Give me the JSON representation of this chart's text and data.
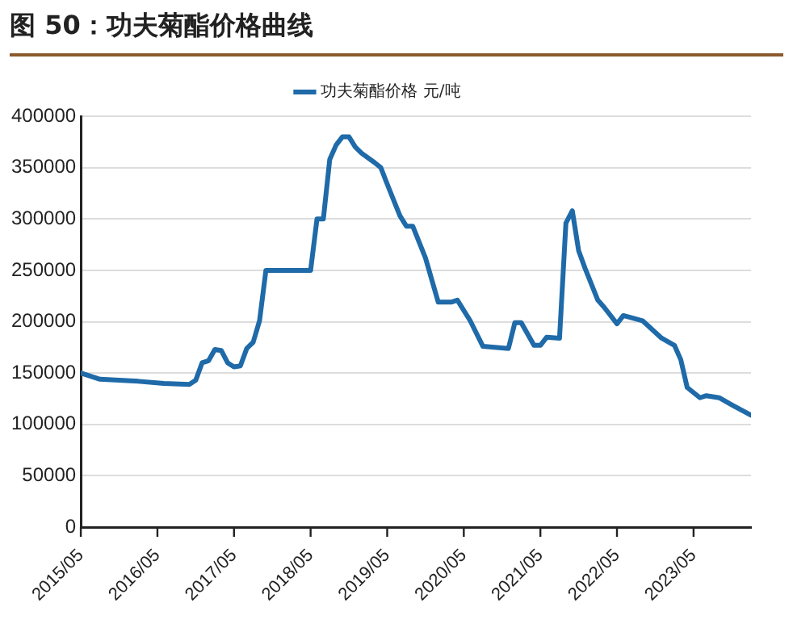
{
  "chart_data": {
    "type": "line",
    "title": "图 50：功夫菊酯价格曲线",
    "x": [
      "2015-05",
      "2015-08",
      "2016-02",
      "2016-06",
      "2016-10",
      "2016-11",
      "2016-12",
      "2017-01",
      "2017-02",
      "2017-03",
      "2017-04",
      "2017-05",
      "2017-06",
      "2017-07",
      "2017-08",
      "2017-09",
      "2017-10",
      "2018-05",
      "2018-06",
      "2018-07",
      "2018-08",
      "2018-09",
      "2018-10",
      "2018-11",
      "2018-12",
      "2019-01",
      "2019-03",
      "2019-04",
      "2019-05",
      "2019-07",
      "2019-08",
      "2019-09",
      "2019-11",
      "2020-01",
      "2020-03",
      "2020-04",
      "2020-06",
      "2020-08",
      "2020-12",
      "2021-01",
      "2021-02",
      "2021-04",
      "2021-05",
      "2021-06",
      "2021-08",
      "2021-09",
      "2021-10",
      "2021-11",
      "2021-12",
      "2022-02",
      "2022-03",
      "2022-05",
      "2022-06",
      "2022-09",
      "2022-12",
      "2023-02",
      "2023-03",
      "2023-04",
      "2023-06",
      "2023-07",
      "2023-09",
      "2023-11",
      "2024-02"
    ],
    "series": [
      {
        "name": "功夫菊酯价格 元/吨",
        "color": "#1f6aa8",
        "values": [
          150000,
          144000,
          142000,
          140000,
          139000,
          143000,
          160000,
          162000,
          173000,
          172000,
          160000,
          156000,
          157000,
          174000,
          180000,
          201000,
          250000,
          250000,
          300000,
          300000,
          358000,
          372000,
          380000,
          380000,
          370000,
          364000,
          355000,
          350000,
          334000,
          303000,
          293000,
          293000,
          262000,
          219000,
          219000,
          221000,
          201000,
          176000,
          174000,
          199000,
          199000,
          177000,
          177000,
          185000,
          184000,
          296000,
          308000,
          269000,
          252000,
          221000,
          214000,
          198000,
          206000,
          201000,
          184000,
          177000,
          163000,
          136000,
          126000,
          128000,
          126000,
          119000,
          109000
        ]
      }
    ],
    "xlim": [
      "2015-05",
      "2024-02"
    ],
    "xticks": [
      {
        "value": "2015-05",
        "label": "2015/05"
      },
      {
        "value": "2016-05",
        "label": "2016/05"
      },
      {
        "value": "2017-05",
        "label": "2017/05"
      },
      {
        "value": "2018-05",
        "label": "2018/05"
      },
      {
        "value": "2019-05",
        "label": "2019/05"
      },
      {
        "value": "2020-05",
        "label": "2020/05"
      },
      {
        "value": "2021-05",
        "label": "2021/05"
      },
      {
        "value": "2022-05",
        "label": "2022/05"
      },
      {
        "value": "2023-05",
        "label": "2023/05"
      }
    ],
    "ylim": [
      0,
      400000
    ],
    "yticks": [
      0,
      50000,
      100000,
      150000,
      200000,
      250000,
      300000,
      350000,
      400000
    ],
    "grid": "y",
    "legend": "top",
    "marker": "none",
    "line_style": "solid"
  }
}
